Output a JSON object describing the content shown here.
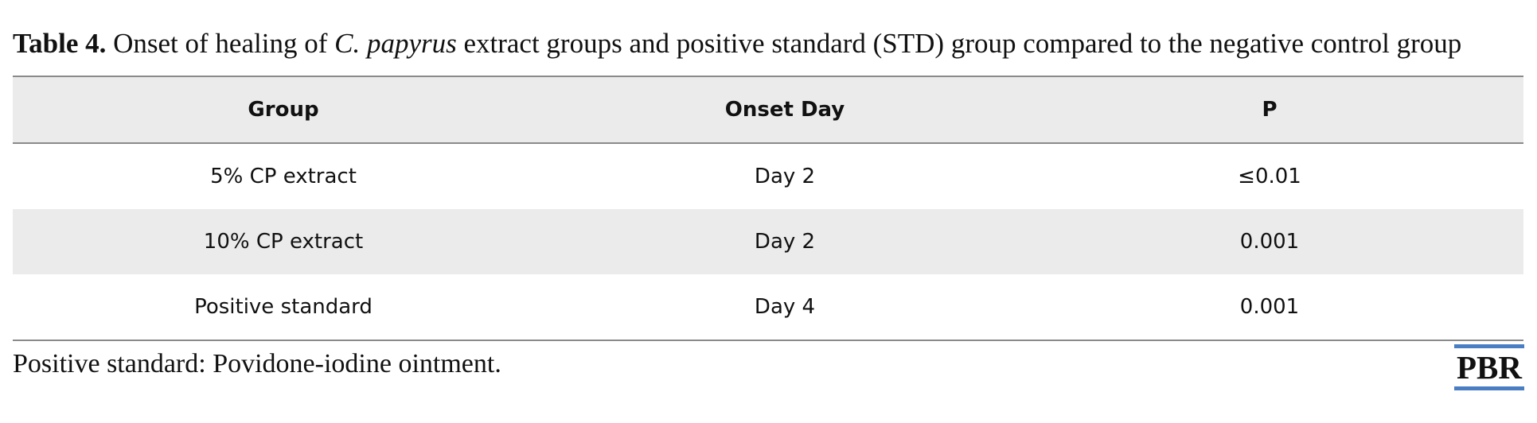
{
  "caption": {
    "label": "Table 4.",
    "text_before": " Onset of healing of ",
    "species": "C. papyrus",
    "text_after": " extract groups and positive standard (STD) group compared to the negative control group"
  },
  "table": {
    "headers": [
      "Group",
      "Onset Day",
      "P"
    ],
    "rows": [
      [
        "5% CP extract",
        "Day 2",
        "≤0.01"
      ],
      [
        "10% CP extract",
        "Day 2",
        "0.001"
      ],
      [
        "Positive standard",
        "Day 4",
        "0.001"
      ]
    ]
  },
  "footnote": "Positive standard: Povidone-iodine ointment.",
  "logo": {
    "text": "PBR",
    "accent_color": "#4a7ec3"
  }
}
